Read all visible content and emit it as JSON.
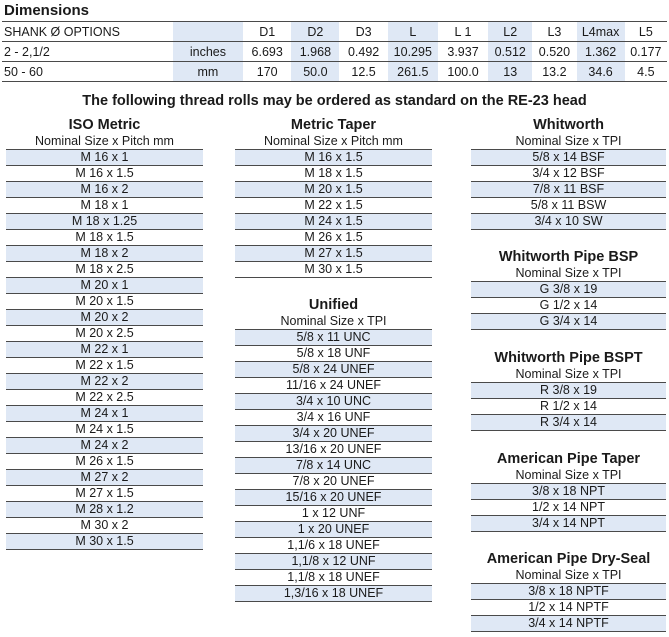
{
  "title": "Dimensions",
  "dimensions": {
    "header": [
      "SHANK Ø OPTIONS",
      "",
      "D1",
      "D2",
      "D3",
      "L",
      "L 1",
      "L2",
      "L3",
      "L4max",
      "L5"
    ],
    "rows": [
      [
        "2 - 2,1/2",
        "inches",
        "6.693",
        "1.968",
        "0.492",
        "10.295",
        "3.937",
        "0.512",
        "0.520",
        "1.362",
        "0.177"
      ],
      [
        "50 - 60",
        "mm",
        "170",
        "50.0",
        "12.5",
        "261.5",
        "100.0",
        "13",
        "13.2",
        "34.6",
        "4.5"
      ]
    ]
  },
  "headline": "The following thread rolls may be ordered as standard on the RE-23 head",
  "groups": {
    "iso_metric": {
      "title": "ISO Metric",
      "subhead": "Nominal Size x Pitch mm",
      "rows": [
        "M 16 x 1",
        "M 16 x 1.5",
        "M 16 x 2",
        "M 18 x 1",
        "M 18 x 1.25",
        "M 18 x 1.5",
        "M 18 x 2",
        "M 18 x 2.5",
        "M 20 x 1",
        "M 20 x 1.5",
        "M 20 x 2",
        "M 20 x 2.5",
        "M 22 x 1",
        "M 22 x 1.5",
        "M 22 x 2",
        "M 22 x 2.5",
        "M 24 x 1",
        "M 24 x 1.5",
        "M 24 x 2",
        "M 26 x 1.5",
        "M 27 x 2",
        "M 27 x 1.5",
        "M 28 x 1.2",
        "M 30 x 2",
        "M 30 x 1.5"
      ]
    },
    "metric_taper": {
      "title": "Metric Taper",
      "subhead": "Nominal Size x Pitch mm",
      "rows": [
        "M 16 x 1.5",
        "M 18 x 1.5",
        "M 20 x 1.5",
        "M 22 x 1.5",
        "M 24 x 1.5",
        "M 26 x 1.5",
        "M 27 x 1.5",
        "M 30 x 1.5"
      ]
    },
    "unified": {
      "title": "Unified",
      "subhead": "Nominal Size x TPI",
      "rows": [
        "5/8 x 11 UNC",
        "5/8 x 18 UNF",
        "5/8 x 24 UNEF",
        "11/16 x 24 UNEF",
        "3/4 x 10 UNC",
        "3/4 x 16 UNF",
        "3/4 x 20 UNEF",
        "13/16 x 20 UNEF",
        "7/8 x 14 UNC",
        "7/8 x 20 UNEF",
        "15/16 x 20 UNEF",
        "1 x 12 UNF",
        "1 x 20 UNEF",
        "1,1/6 x 18 UNEF",
        "1,1/8 x 12 UNF",
        "1,1/8 x 18 UNEF",
        "1,3/16 x 18 UNEF"
      ]
    },
    "whitworth": {
      "title": "Whitworth",
      "subhead": "Nominal Size x TPI",
      "rows": [
        "5/8 x 14 BSF",
        "3/4 x 12 BSF",
        "7/8 x 11 BSF",
        "5/8 x 11 BSW",
        "3/4 x 10 SW"
      ]
    },
    "whitworth_bsp": {
      "title": "Whitworth Pipe BSP",
      "subhead": "Nominal Size x TPI",
      "rows": [
        "G 3/8 x 19",
        "G 1/2 x 14",
        "G 3/4 x 14"
      ]
    },
    "whitworth_bspt": {
      "title": "Whitworth Pipe BSPT",
      "subhead": "Nominal Size x TPI",
      "rows": [
        "R 3/8 x 19",
        "R 1/2 x 14",
        "R 3/4 x 14"
      ]
    },
    "american_taper": {
      "title": "American Pipe Taper",
      "subhead": "Nominal Size x TPI",
      "rows": [
        "3/8 x 18 NPT",
        "1/2 x 14 NPT",
        "3/4 x 14 NPT"
      ]
    },
    "american_dryseal": {
      "title": "American Pipe Dry-Seal",
      "subhead": "Nominal Size x TPI",
      "rows": [
        "3/8 x 18 NPTF",
        "1/2 x 14 NPTF",
        "3/4 x 14 NPTF"
      ]
    }
  }
}
